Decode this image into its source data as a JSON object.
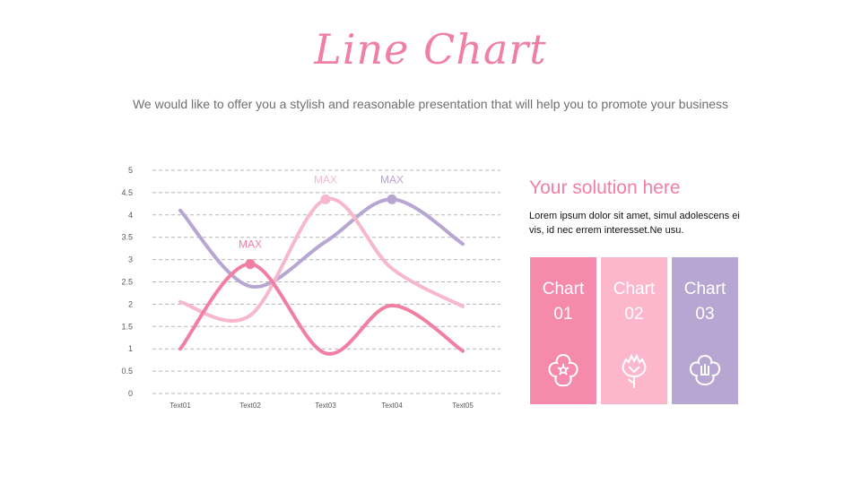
{
  "header": {
    "title": "Line Chart",
    "subtitle": "We would like to offer you a stylish and reasonable presentation that will help you to promote your business"
  },
  "solution": {
    "title": "Your solution here",
    "text": "Lorem ipsum dolor sit amet, simul adolescens ei vis, id nec errem interesset.Ne usu."
  },
  "cards": [
    {
      "line1": "Chart",
      "line2": "01",
      "icon": "flower-icon",
      "color": "#f68aac"
    },
    {
      "line1": "Chart",
      "line2": "02",
      "icon": "carnation-icon",
      "color": "#fdb7cd"
    },
    {
      "line1": "Chart",
      "line2": "03",
      "icon": "blossom-icon",
      "color": "#b8a6d2"
    }
  ],
  "chart_data": {
    "type": "line",
    "categories": [
      "Text01",
      "Text02",
      "Text03",
      "Text04",
      "Text05"
    ],
    "ylim": [
      0,
      5
    ],
    "yticks": [
      "0",
      "0.5",
      "1",
      "1.5",
      "2",
      "2.5",
      "3",
      "3.5",
      "4",
      "4.5",
      "5"
    ],
    "grid": true,
    "series": [
      {
        "values": [
          4.1,
          2.4,
          3.4,
          4.35,
          3.35
        ],
        "color": "#b8a6d2",
        "max_label": "MAX",
        "max_index": 3
      },
      {
        "values": [
          2.05,
          1.75,
          4.35,
          2.8,
          1.95
        ],
        "color": "#f7b8cc",
        "max_label": "MAX",
        "max_index": 2
      },
      {
        "values": [
          1.0,
          2.9,
          0.9,
          1.97,
          0.95
        ],
        "color": "#f27fa2",
        "max_label": "MAX",
        "max_index": 1
      }
    ]
  }
}
